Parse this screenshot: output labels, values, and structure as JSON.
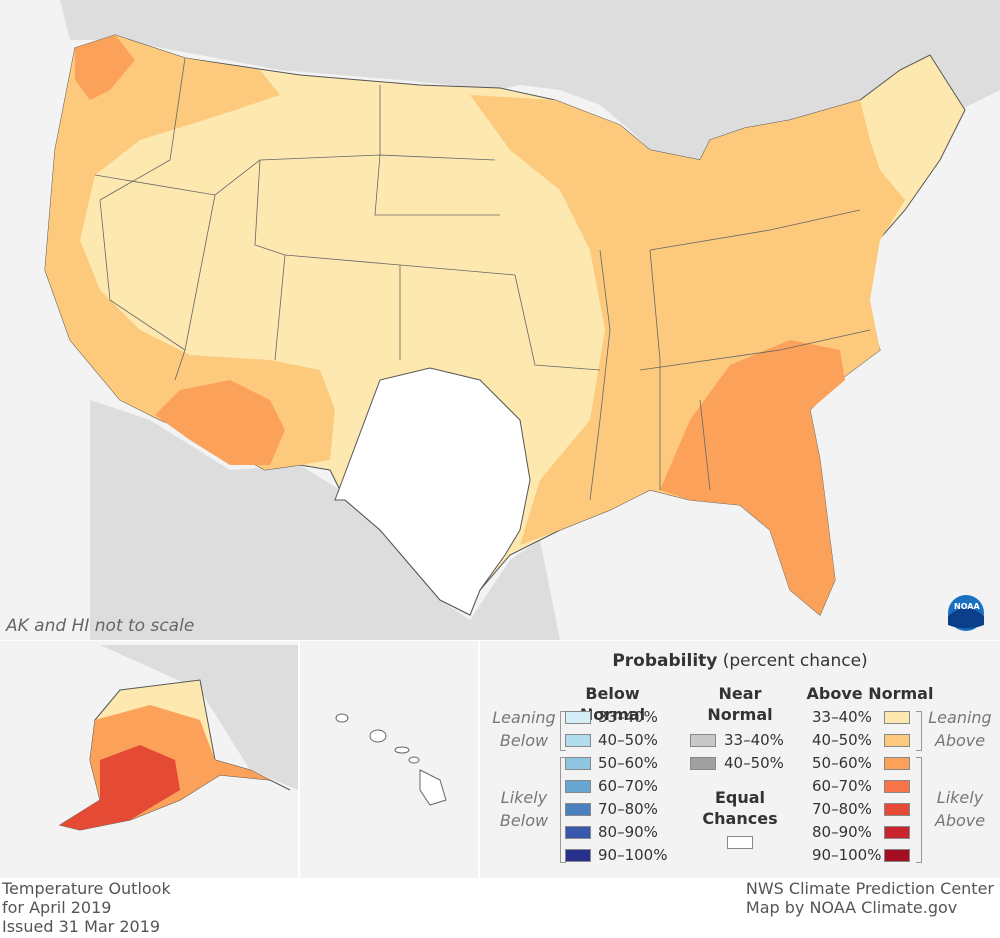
{
  "note": "AK and HI not to scale",
  "legend": {
    "title_bold": "Probability",
    "title_rest": " (percent chance)",
    "below_header": "Below Normal",
    "near_header": [
      "Near",
      "Normal"
    ],
    "above_header": "Above Normal",
    "equal_header": [
      "Equal",
      "Chances"
    ],
    "leaning_below": [
      "Leaning",
      "Below"
    ],
    "likely_below": [
      "Likely",
      "Below"
    ],
    "leaning_above": [
      "Leaning",
      "Above"
    ],
    "likely_above": [
      "Likely",
      "Above"
    ],
    "below": [
      {
        "label": "33–40%",
        "color": "#d5eef6"
      },
      {
        "label": "40–50%",
        "color": "#b0dcec"
      },
      {
        "label": "50–60%",
        "color": "#8ec6e2"
      },
      {
        "label": "60–70%",
        "color": "#6aa6d2"
      },
      {
        "label": "70–80%",
        "color": "#4a7fc0"
      },
      {
        "label": "80–90%",
        "color": "#3858ae"
      },
      {
        "label": "90–100%",
        "color": "#28308e"
      }
    ],
    "near": [
      {
        "label": "33–40%",
        "color": "#c8c8c8"
      },
      {
        "label": "40–50%",
        "color": "#a0a0a0"
      }
    ],
    "above": [
      {
        "label": "33–40%",
        "color": "#fde8b0"
      },
      {
        "label": "40–50%",
        "color": "#fdc97c"
      },
      {
        "label": "50–60%",
        "color": "#fba15a"
      },
      {
        "label": "60–70%",
        "color": "#f7744a"
      },
      {
        "label": "70–80%",
        "color": "#e54a35"
      },
      {
        "label": "80–90%",
        "color": "#c8262c"
      },
      {
        "label": "90–100%",
        "color": "#a30e22"
      }
    ]
  },
  "footer": {
    "left": [
      "Temperature Outlook",
      "for April 2019",
      "Issued 31 Mar 2019"
    ],
    "right": [
      "NWS Climate Prediction Center",
      "Map by NOAA Climate.gov"
    ]
  },
  "logo_text": "NOAA"
}
